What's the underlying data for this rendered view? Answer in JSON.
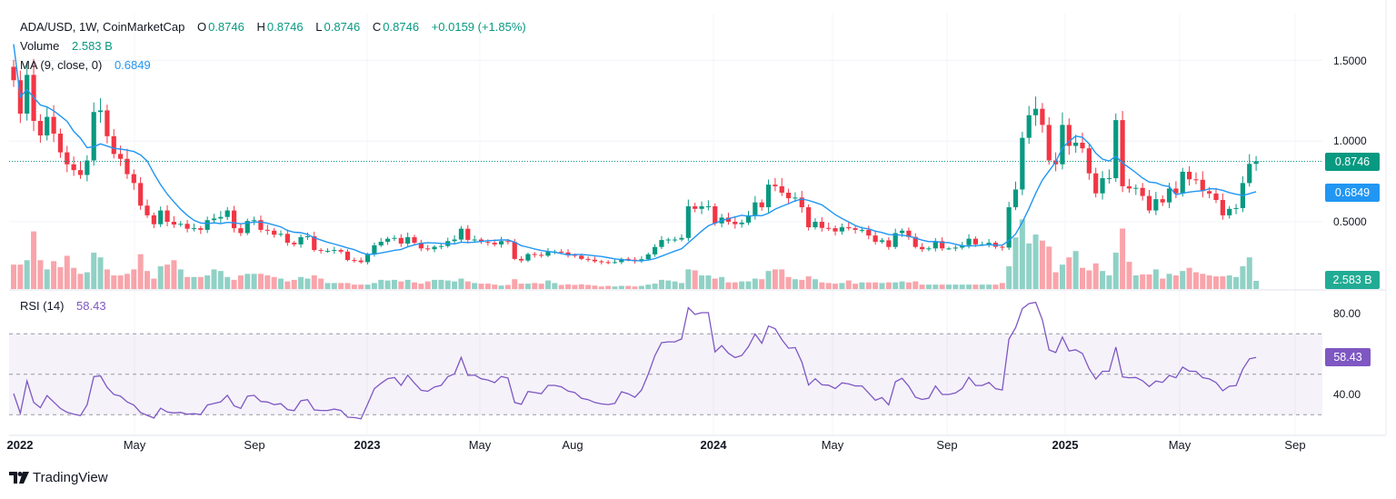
{
  "legend": {
    "symbol": "ADA/USD, 1W, CoinMarketCap",
    "o_label": "O",
    "o_value": "0.8746",
    "h_label": "H",
    "h_value": "0.8746",
    "l_label": "L",
    "l_value": "0.8746",
    "c_label": "C",
    "c_value": "0.8746",
    "change": "+0.0159 (+1.85%)",
    "volume_label": "Volume",
    "volume_value": "2.583 B",
    "ma_label": "MA (9, close, 0)",
    "ma_value": "0.6849",
    "rsi_label": "RSI (14)",
    "rsi_value": "58.43"
  },
  "price_axis": {
    "ticks": [
      "1.5000",
      "1.0000",
      "0.5000"
    ],
    "last_price": "0.8746",
    "ma_tag": "0.6849",
    "volume_tag": "2.583 B"
  },
  "rsi_axis": {
    "ticks": [
      "80.00",
      "40.00"
    ],
    "tag": "58.43"
  },
  "x_axis": {
    "ticks": [
      {
        "label": "2022",
        "bold": true
      },
      {
        "label": "May"
      },
      {
        "label": "Sep"
      },
      {
        "label": "2023",
        "bold": true
      },
      {
        "label": "May"
      },
      {
        "label": "Aug"
      },
      {
        "label": "2024",
        "bold": true
      },
      {
        "label": "May"
      },
      {
        "label": "Sep"
      },
      {
        "label": "2025",
        "bold": true
      },
      {
        "label": "May"
      },
      {
        "label": "Sep"
      }
    ]
  },
  "branding": {
    "logo_text": "TradingView"
  },
  "colors": {
    "up": "#089981",
    "down": "#f23645",
    "ma": "#2196f3",
    "rsi": "#7e57c2",
    "last_price": "#089981"
  },
  "chart_data": {
    "type": "candlestick",
    "interval": "1W",
    "price_range": [
      0.2,
      1.7
    ],
    "rsi_levels": [
      70,
      50,
      30
    ],
    "rsi_period": 14,
    "ma_period": 9,
    "first_open": 1.46,
    "closes": [
      1.377,
      1.17,
      1.41,
      1.125,
      1.035,
      1.15,
      1.046,
      0.93,
      0.856,
      0.82,
      0.79,
      0.88,
      1.18,
      1.19,
      1.03,
      0.92,
      0.89,
      0.795,
      0.74,
      0.6,
      0.54,
      0.485,
      0.57,
      0.5,
      0.483,
      0.487,
      0.457,
      0.46,
      0.45,
      0.51,
      0.52,
      0.53,
      0.57,
      0.46,
      0.43,
      0.505,
      0.51,
      0.45,
      0.445,
      0.42,
      0.425,
      0.37,
      0.36,
      0.405,
      0.41,
      0.325,
      0.32,
      0.32,
      0.325,
      0.315,
      0.263,
      0.26,
      0.25,
      0.297,
      0.354,
      0.376,
      0.395,
      0.4,
      0.365,
      0.405,
      0.37,
      0.335,
      0.33,
      0.345,
      0.35,
      0.38,
      0.39,
      0.457,
      0.388,
      0.39,
      0.375,
      0.37,
      0.36,
      0.38,
      0.375,
      0.27,
      0.26,
      0.3,
      0.295,
      0.29,
      0.315,
      0.315,
      0.31,
      0.295,
      0.29,
      0.27,
      0.265,
      0.255,
      0.25,
      0.248,
      0.25,
      0.27,
      0.265,
      0.256,
      0.268,
      0.298,
      0.344,
      0.387,
      0.39,
      0.39,
      0.4,
      0.596,
      0.58,
      0.596,
      0.596,
      0.49,
      0.526,
      0.5,
      0.485,
      0.495,
      0.54,
      0.62,
      0.59,
      0.73,
      0.72,
      0.68,
      0.646,
      0.65,
      0.59,
      0.466,
      0.5,
      0.462,
      0.46,
      0.44,
      0.466,
      0.46,
      0.45,
      0.45,
      0.415,
      0.376,
      0.385,
      0.344,
      0.43,
      0.445,
      0.406,
      0.344,
      0.33,
      0.335,
      0.38,
      0.335,
      0.335,
      0.34,
      0.355,
      0.395,
      0.36,
      0.36,
      0.37,
      0.345,
      0.34,
      0.59,
      0.7,
      1.02,
      1.16,
      1.2,
      1.1,
      0.88,
      0.856,
      1.1,
      0.97,
      0.99,
      0.955,
      0.8,
      0.676,
      0.77,
      0.77,
      1.13,
      0.72,
      0.706,
      0.71,
      0.66,
      0.57,
      0.64,
      0.62,
      0.706,
      0.676,
      0.81,
      0.763,
      0.76,
      0.69,
      0.675,
      0.635,
      0.54,
      0.58,
      0.585,
      0.74,
      0.8587,
      0.8746
    ],
    "volumes_billion": [
      7.7,
      7.7,
      9.1,
      18.2,
      9.1,
      6.2,
      8.8,
      6.9,
      10.5,
      6.7,
      4.8,
      5.3,
      11.5,
      10.0,
      6.2,
      4.3,
      4.3,
      4.8,
      6.2,
      11.0,
      5.7,
      3.3,
      7.2,
      7.7,
      9.1,
      6.2,
      3.8,
      3.8,
      3.8,
      4.3,
      6.2,
      5.7,
      3.8,
      2.9,
      4.3,
      4.8,
      4.8,
      4.8,
      4.3,
      3.8,
      3.3,
      2.4,
      2.9,
      3.8,
      3.3,
      4.3,
      3.3,
      1.9,
      1.9,
      1.9,
      1.9,
      1.4,
      1.4,
      1.4,
      1.9,
      2.9,
      2.7,
      2.9,
      2.4,
      2.9,
      2.1,
      1.7,
      2.4,
      2.9,
      2.9,
      2.7,
      2.4,
      3.3,
      2.4,
      1.9,
      1.7,
      1.7,
      1.4,
      1.1,
      1.3,
      3.1,
      1.7,
      1.7,
      1.9,
      1.7,
      2.7,
      1.9,
      1.3,
      1.5,
      1.3,
      1.5,
      1.3,
      1.1,
      0.8,
      1.0,
      0.8,
      1.0,
      1.0,
      0.8,
      1.0,
      1.4,
      1.7,
      2.9,
      2.7,
      2.4,
      1.9,
      6.2,
      5.9,
      4.3,
      4.3,
      3.3,
      3.8,
      2.1,
      2.1,
      2.4,
      2.4,
      3.3,
      3.1,
      5.7,
      6.2,
      6.2,
      3.8,
      3.1,
      2.9,
      4.0,
      3.1,
      2.1,
      1.9,
      1.7,
      1.9,
      2.7,
      1.7,
      2.1,
      2.1,
      2.1,
      1.9,
      2.1,
      2.1,
      2.4,
      2.1,
      2.4,
      1.4,
      1.4,
      1.4,
      1.4,
      1.4,
      1.4,
      1.4,
      1.4,
      1.4,
      1.4,
      1.4,
      1.4,
      1.9,
      7.2,
      16.3,
      22.0,
      14.4,
      17.2,
      15.3,
      13.4,
      5.3,
      7.7,
      10.0,
      12.0,
      6.7,
      5.9,
      8.1,
      5.7,
      4.3,
      11.5,
      19.1,
      8.6,
      4.3,
      4.6,
      4.6,
      6.2,
      3.3,
      4.8,
      4.3,
      5.7,
      6.7,
      5.3,
      4.8,
      4.3,
      4.0,
      4.0,
      4.3,
      3.8,
      7.2,
      10.0,
      2.583
    ]
  }
}
